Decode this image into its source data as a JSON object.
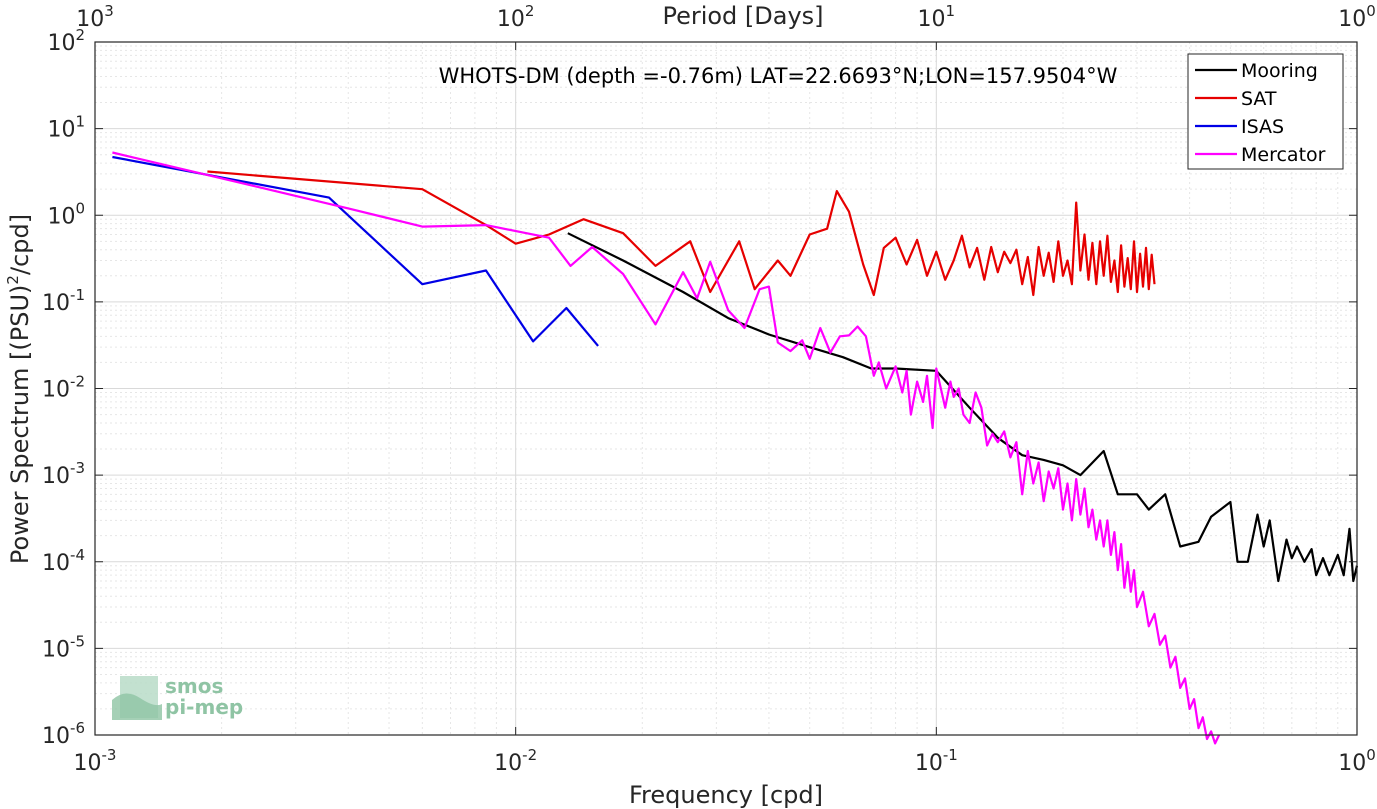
{
  "chart_data": {
    "type": "line",
    "title": "WHOTS-DM (depth =-0.76m) LAT=22.6693°N;LON=157.9504°W",
    "xlabel": "Frequency [cpd]",
    "ylabel_prefix": "Power Spectrum [(PSU)",
    "ylabel_sup": "2",
    "ylabel_suffix": "/cpd]",
    "top_xlabel": "Period [Days]",
    "x_scale": "log",
    "y_scale": "log",
    "xlim": [
      0.001,
      1
    ],
    "ylim": [
      1e-06,
      100
    ],
    "grid": true,
    "legend_position": "top-right",
    "x_ticks": [
      {
        "value": 0.001,
        "base": "10",
        "exp": "-3"
      },
      {
        "value": 0.01,
        "base": "10",
        "exp": "-2"
      },
      {
        "value": 0.1,
        "base": "10",
        "exp": "-1"
      },
      {
        "value": 1,
        "base": "10",
        "exp": "0"
      }
    ],
    "top_ticks": [
      {
        "value": 0.001,
        "base": "10",
        "exp": "3"
      },
      {
        "value": 0.01,
        "base": "10",
        "exp": "2"
      },
      {
        "value": 0.1,
        "base": "10",
        "exp": "1"
      },
      {
        "value": 1,
        "base": "10",
        "exp": "0"
      }
    ],
    "y_ticks": [
      {
        "value": 100,
        "base": "10",
        "exp": "2"
      },
      {
        "value": 10,
        "base": "10",
        "exp": "1"
      },
      {
        "value": 1,
        "base": "10",
        "exp": "0"
      },
      {
        "value": 0.1,
        "base": "10",
        "exp": "-1"
      },
      {
        "value": 0.01,
        "base": "10",
        "exp": "-2"
      },
      {
        "value": 0.001,
        "base": "10",
        "exp": "-3"
      },
      {
        "value": 0.0001,
        "base": "10",
        "exp": "-4"
      },
      {
        "value": 1e-05,
        "base": "10",
        "exp": "-5"
      },
      {
        "value": 1e-06,
        "base": "10",
        "exp": "-6"
      }
    ],
    "series": [
      {
        "name": "Mooring",
        "color": "#000000",
        "x": [
          0.0133,
          0.018,
          0.025,
          0.032,
          0.04,
          0.05,
          0.06,
          0.07,
          0.08,
          0.1,
          0.12,
          0.14,
          0.16,
          0.18,
          0.2,
          0.22,
          0.25,
          0.27,
          0.3,
          0.32,
          0.35,
          0.38,
          0.42,
          0.45,
          0.5,
          0.52,
          0.55,
          0.58,
          0.6,
          0.62,
          0.65,
          0.68,
          0.7,
          0.72,
          0.75,
          0.78,
          0.8,
          0.83,
          0.86,
          0.9,
          0.93,
          0.96,
          0.98,
          1.0
        ],
        "y": [
          0.62,
          0.3,
          0.13,
          0.065,
          0.042,
          0.03,
          0.023,
          0.017,
          0.017,
          0.016,
          0.006,
          0.0027,
          0.0017,
          0.0015,
          0.0013,
          0.001,
          0.0019,
          0.0006,
          0.0006,
          0.0004,
          0.0006,
          0.00015,
          0.00017,
          0.00033,
          0.00049,
          0.0001,
          0.0001,
          0.00035,
          0.00015,
          0.0003,
          6e-05,
          0.00018,
          0.00011,
          0.00015,
          0.0001,
          0.00014,
          7e-05,
          0.00011,
          7e-05,
          0.00012,
          7e-05,
          0.00024,
          6e-05,
          9e-05
        ]
      },
      {
        "name": "SAT",
        "color": "#e60000",
        "x": [
          0.00185,
          0.006,
          0.0085,
          0.01,
          0.012,
          0.0145,
          0.018,
          0.0215,
          0.026,
          0.029,
          0.034,
          0.037,
          0.042,
          0.045,
          0.05,
          0.055,
          0.058,
          0.062,
          0.067,
          0.071,
          0.075,
          0.08,
          0.085,
          0.09,
          0.095,
          0.1,
          0.105,
          0.11,
          0.115,
          0.12,
          0.125,
          0.13,
          0.135,
          0.14,
          0.145,
          0.15,
          0.155,
          0.16,
          0.165,
          0.17,
          0.175,
          0.18,
          0.185,
          0.19,
          0.195,
          0.2,
          0.205,
          0.21,
          0.215,
          0.22,
          0.225,
          0.23,
          0.235,
          0.24,
          0.245,
          0.25,
          0.255,
          0.26,
          0.265,
          0.27,
          0.275,
          0.28,
          0.285,
          0.29,
          0.295,
          0.3,
          0.305,
          0.31,
          0.315,
          0.32,
          0.325,
          0.33
        ],
        "y": [
          3.2,
          2.0,
          0.77,
          0.47,
          0.6,
          0.9,
          0.62,
          0.26,
          0.5,
          0.13,
          0.5,
          0.14,
          0.3,
          0.2,
          0.6,
          0.7,
          1.9,
          1.1,
          0.27,
          0.12,
          0.42,
          0.55,
          0.27,
          0.52,
          0.2,
          0.38,
          0.18,
          0.3,
          0.58,
          0.25,
          0.42,
          0.18,
          0.43,
          0.22,
          0.38,
          0.28,
          0.4,
          0.16,
          0.33,
          0.12,
          0.43,
          0.2,
          0.37,
          0.17,
          0.5,
          0.2,
          0.3,
          0.16,
          1.4,
          0.23,
          0.6,
          0.18,
          0.48,
          0.16,
          0.5,
          0.2,
          0.58,
          0.17,
          0.3,
          0.13,
          0.45,
          0.15,
          0.32,
          0.14,
          0.5,
          0.13,
          0.36,
          0.15,
          0.42,
          0.14,
          0.35,
          0.16
        ]
      },
      {
        "name": "ISAS",
        "color": "#0000e6",
        "x": [
          0.0011,
          0.0036,
          0.006,
          0.0085,
          0.011,
          0.0132,
          0.0157
        ],
        "y": [
          4.7,
          1.6,
          0.16,
          0.23,
          0.035,
          0.085,
          0.031
        ]
      },
      {
        "name": "Mercator",
        "color": "#ff00ff",
        "x": [
          0.0011,
          0.004,
          0.006,
          0.0085,
          0.012,
          0.0135,
          0.0152,
          0.018,
          0.0215,
          0.025,
          0.027,
          0.029,
          0.032,
          0.035,
          0.038,
          0.04,
          0.042,
          0.045,
          0.048,
          0.05,
          0.053,
          0.056,
          0.059,
          0.062,
          0.065,
          0.068,
          0.071,
          0.073,
          0.076,
          0.08,
          0.083,
          0.085,
          0.087,
          0.09,
          0.093,
          0.095,
          0.098,
          0.1,
          0.105,
          0.108,
          0.11,
          0.113,
          0.116,
          0.12,
          0.124,
          0.128,
          0.132,
          0.136,
          0.14,
          0.145,
          0.15,
          0.155,
          0.16,
          0.165,
          0.17,
          0.175,
          0.18,
          0.185,
          0.19,
          0.195,
          0.2,
          0.205,
          0.21,
          0.215,
          0.22,
          0.225,
          0.23,
          0.235,
          0.24,
          0.245,
          0.25,
          0.255,
          0.26,
          0.265,
          0.27,
          0.275,
          0.28,
          0.285,
          0.29,
          0.295,
          0.3,
          0.31,
          0.32,
          0.33,
          0.34,
          0.35,
          0.36,
          0.37,
          0.38,
          0.39,
          0.4,
          0.41,
          0.42,
          0.43,
          0.44,
          0.45,
          0.46,
          0.47
        ],
        "y": [
          5.3,
          1.2,
          0.74,
          0.77,
          0.55,
          0.26,
          0.43,
          0.21,
          0.055,
          0.22,
          0.11,
          0.29,
          0.08,
          0.05,
          0.14,
          0.15,
          0.034,
          0.027,
          0.036,
          0.022,
          0.05,
          0.026,
          0.04,
          0.041,
          0.052,
          0.04,
          0.014,
          0.02,
          0.01,
          0.018,
          0.009,
          0.016,
          0.005,
          0.012,
          0.007,
          0.014,
          0.0035,
          0.017,
          0.006,
          0.012,
          0.008,
          0.01,
          0.005,
          0.004,
          0.009,
          0.006,
          0.0022,
          0.003,
          0.0024,
          0.0032,
          0.0016,
          0.0024,
          0.0006,
          0.0019,
          0.0008,
          0.0014,
          0.0005,
          0.0011,
          0.0007,
          0.0012,
          0.0004,
          0.0008,
          0.0003,
          0.0009,
          0.00035,
          0.0007,
          0.00025,
          0.0004,
          0.00018,
          0.0003,
          0.00015,
          0.0003,
          0.00012,
          0.00022,
          8e-05,
          0.00016,
          5e-05,
          0.0001,
          4.5e-05,
          8e-05,
          3e-05,
          4.5e-05,
          1.8e-05,
          2.5e-05,
          1.1e-05,
          1.4e-05,
          6e-06,
          8e-06,
          3.5e-06,
          4.5e-06,
          2e-06,
          2.6e-06,
          1.2e-06,
          1.6e-06,
          9e-07,
          1.1e-06,
          8e-07,
          1e-06
        ]
      }
    ]
  },
  "logo": {
    "line1": "smos",
    "line2": "pi-mep"
  }
}
